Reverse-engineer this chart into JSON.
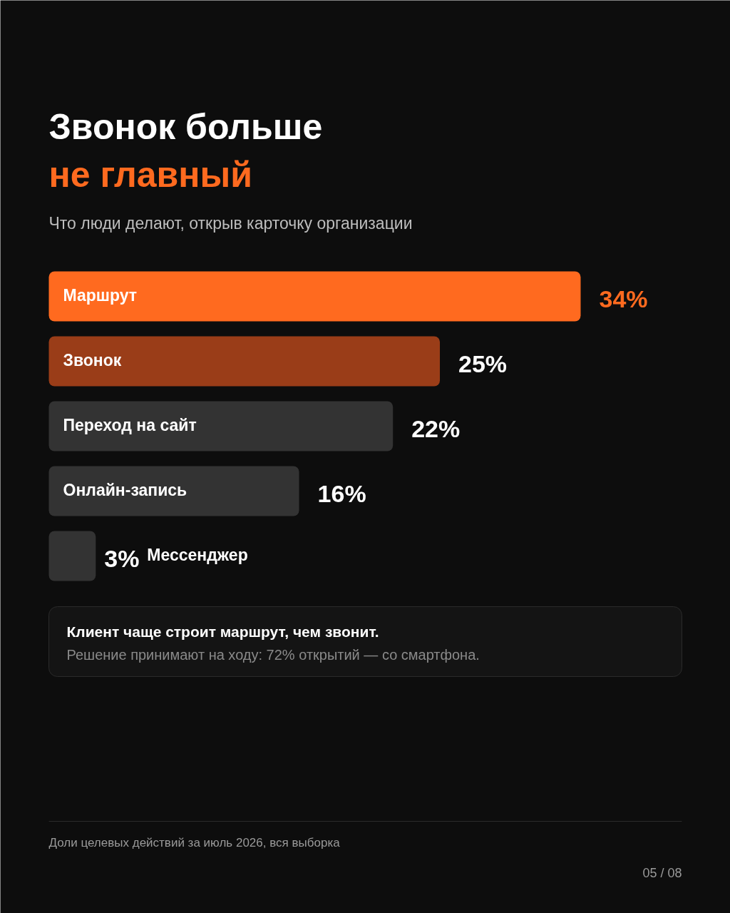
{
  "chart_data": {
    "type": "bar",
    "orientation": "horizontal",
    "title": "Звонок больше\nне главный",
    "subtitle": "Что люди делают, открыв карточку организации",
    "categories": [
      "Маршрут",
      "Звонок",
      "Переход на сайт",
      "Онлайн-запись",
      "Мессенджер"
    ],
    "values": [
      34,
      25,
      22,
      16,
      3
    ],
    "colors": [
      "#ff6a1f",
      "#9a3d18",
      "#333333",
      "#333333",
      "#333333"
    ],
    "value_labels": [
      "34%",
      "25%",
      "22%",
      "16%",
      "3%"
    ],
    "annotations": [
      "Клиент чаще строит маршрут, чем звонит.",
      "Решение принимают на ходу: 72% открытий — со смартфона.",
      "Доли целевых действий за июль 2026, вся выборка",
      "05 / 08"
    ],
    "grid": false
  }
}
